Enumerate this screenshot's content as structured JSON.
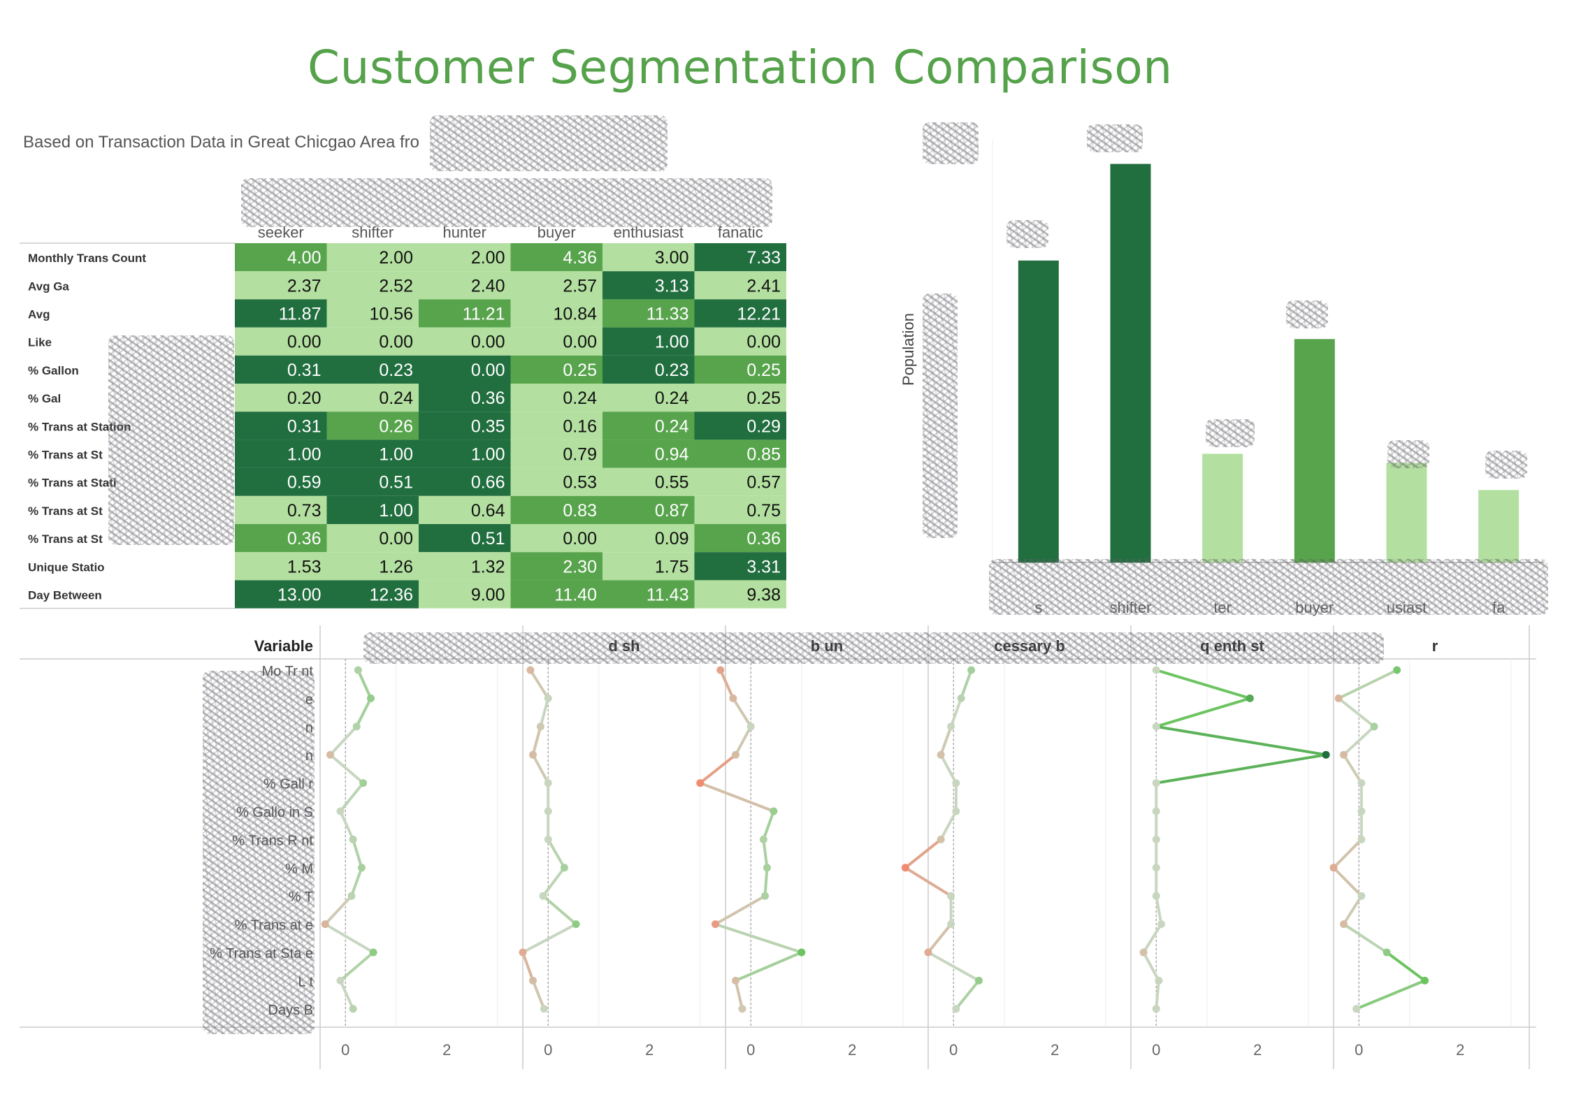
{
  "title": "Customer Segmentation Comparison",
  "subtitle": "Based on Transaction Data in Great Chicgao Area fro",
  "colors": {
    "title": "#55a24b",
    "dark_green": "#216e3f",
    "mid_green": "#58a44c",
    "light_green": "#b3e0a0",
    "neutral_point": "#c8d6c0",
    "negative_point": "#f08a70",
    "zero_line": "#999999"
  },
  "chart_data": [
    {
      "type": "heatmap",
      "columns": [
        "seeker",
        "shifter",
        "hunter",
        "buyer",
        "enthusiast",
        "fanatic"
      ],
      "rows": [
        {
          "label": "Monthly Trans Count",
          "values": [
            4.0,
            2.0,
            2.0,
            4.36,
            3.0,
            7.33
          ],
          "shades": [
            "mid",
            "light",
            "light",
            "mid",
            "light",
            "dark"
          ]
        },
        {
          "label": "Avg Ga",
          "values": [
            2.37,
            2.52,
            2.4,
            2.57,
            3.13,
            2.41
          ],
          "shades": [
            "light",
            "light",
            "light",
            "light",
            "dark",
            "light"
          ]
        },
        {
          "label": "Avg",
          "values": [
            11.87,
            10.56,
            11.21,
            10.84,
            11.33,
            12.21
          ],
          "shades": [
            "dark",
            "light",
            "mid",
            "light",
            "mid",
            "dark"
          ]
        },
        {
          "label": "Like",
          "values": [
            0.0,
            0.0,
            0.0,
            0.0,
            1.0,
            0.0
          ],
          "shades": [
            "light",
            "light",
            "light",
            "light",
            "dark",
            "light"
          ]
        },
        {
          "label": "% Gallon",
          "values": [
            0.31,
            0.23,
            0.0,
            0.25,
            0.23,
            0.25
          ],
          "shades": [
            "dark",
            "dark",
            "dark",
            "mid",
            "dark",
            "mid"
          ]
        },
        {
          "label": "% Gal",
          "values": [
            0.2,
            0.24,
            0.36,
            0.24,
            0.24,
            0.25
          ],
          "shades": [
            "light",
            "light",
            "dark",
            "light",
            "light",
            "light"
          ]
        },
        {
          "label": "% Trans at Station",
          "values": [
            0.31,
            0.26,
            0.35,
            0.16,
            0.24,
            0.29
          ],
          "shades": [
            "dark",
            "mid",
            "dark",
            "light",
            "mid",
            "dark"
          ]
        },
        {
          "label": "% Trans at St",
          "values": [
            1.0,
            1.0,
            1.0,
            0.79,
            0.94,
            0.85
          ],
          "shades": [
            "dark",
            "dark",
            "dark",
            "light",
            "mid",
            "mid"
          ]
        },
        {
          "label": "% Trans at Stati",
          "values": [
            0.59,
            0.51,
            0.66,
            0.53,
            0.55,
            0.57
          ],
          "shades": [
            "dark",
            "dark",
            "dark",
            "light",
            "light",
            "light"
          ]
        },
        {
          "label": "% Trans at St",
          "values": [
            0.73,
            1.0,
            0.64,
            0.83,
            0.87,
            0.75
          ],
          "shades": [
            "light",
            "dark",
            "light",
            "mid",
            "mid",
            "light"
          ]
        },
        {
          "label": "% Trans at St",
          "values": [
            0.36,
            0.0,
            0.51,
            0.0,
            0.09,
            0.36
          ],
          "shades": [
            "mid",
            "light",
            "dark",
            "light",
            "light",
            "mid"
          ]
        },
        {
          "label": "Unique Statio",
          "values": [
            1.53,
            1.26,
            1.32,
            2.3,
            1.75,
            3.31
          ],
          "shades": [
            "light",
            "light",
            "light",
            "mid",
            "light",
            "dark"
          ]
        },
        {
          "label": "Day Between",
          "values": [
            13.0,
            12.36,
            9.0,
            11.4,
            11.43,
            9.38
          ],
          "shades": [
            "dark",
            "dark",
            "light",
            "mid",
            "mid",
            "light"
          ]
        }
      ]
    },
    {
      "type": "bar",
      "categories": [
        "seeker",
        "shifter",
        "hunter",
        "buyer",
        "enthusiast",
        "fanatic"
      ],
      "category_labels": [
        "s",
        "shifter",
        "ter",
        "buyer",
        "usiast",
        "fa"
      ],
      "values": [
        100,
        132,
        36,
        74,
        33,
        24
      ],
      "shades": [
        "dark",
        "dark",
        "light",
        "mid",
        "light",
        "light"
      ],
      "ylabel": "Population",
      "ylim": [
        0,
        140
      ],
      "grid": false
    },
    {
      "type": "line",
      "header_label": "Variable",
      "row_labels": [
        "Mo      Tr       nt",
        "e",
        "n",
        "n",
        "% Gall                     r",
        "% Gallo          in S",
        "% Trans                R       nt",
        "%                                  M",
        "% T",
        "% Trans at                                 e",
        "% Trans at Sta                          e",
        "L                        t",
        "Days B"
      ],
      "panels": [
        "seeker",
        "shifter",
        "hunter",
        "buyer",
        "enthusiast",
        "fanatic"
      ],
      "panel_labels": [
        "",
        "d sh",
        "b              un",
        "cessary b",
        "q          enth       st",
        "r"
      ],
      "xticks": [
        0,
        2
      ],
      "xlim": [
        -0.5,
        3.5
      ],
      "series": [
        {
          "name": "seeker",
          "values": [
            0.25,
            0.5,
            0.22,
            -0.3,
            0.35,
            -0.1,
            0.15,
            0.32,
            0.12,
            -0.4,
            0.55,
            -0.1,
            0.15
          ]
        },
        {
          "name": "shifter",
          "values": [
            -0.35,
            0.0,
            -0.15,
            -0.3,
            0.0,
            0.0,
            0.0,
            0.32,
            -0.1,
            0.55,
            -0.5,
            -0.3,
            -0.08
          ]
        },
        {
          "name": "hunter",
          "values": [
            -0.6,
            -0.35,
            0.0,
            -0.3,
            -1.0,
            0.45,
            0.25,
            0.32,
            0.28,
            -0.7,
            1.0,
            -0.3,
            -0.17
          ]
        },
        {
          "name": "buyer",
          "values": [
            0.35,
            0.15,
            -0.05,
            -0.25,
            0.05,
            0.05,
            -0.25,
            -0.95,
            -0.05,
            -0.05,
            -0.5,
            0.5,
            0.05
          ]
        },
        {
          "name": "enthusiast",
          "values": [
            0.0,
            1.85,
            0.0,
            3.35,
            0.0,
            0.0,
            0.0,
            0.0,
            0.0,
            0.1,
            -0.25,
            0.05,
            0.0
          ]
        },
        {
          "name": "fanatic",
          "values": [
            0.75,
            -0.4,
            0.3,
            -0.3,
            0.05,
            0.05,
            0.05,
            -0.5,
            0.05,
            -0.3,
            0.55,
            1.3,
            -0.05
          ]
        }
      ]
    }
  ]
}
